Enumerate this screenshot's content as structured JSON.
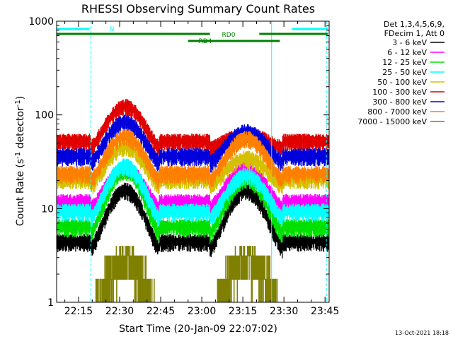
{
  "chart_data": {
    "type": "line",
    "title": "RHESSI Observing Summary Count Rates",
    "xlabel": "Start Time (20-Jan-09 22:07:02)",
    "ylabel": "Count Rate (s",
    "ylabel_sup1": "-1",
    "ylabel_mid": " detector",
    "ylabel_sup2": "-1",
    "ylabel_end": ")",
    "x_unit": "minutes after 22:00 UT",
    "xlim": [
      7.0,
      106.5
    ],
    "ylim": [
      1,
      1000
    ],
    "yscale": "log",
    "x_ticks": [
      15,
      30,
      45,
      60,
      75,
      90,
      105
    ],
    "x_tick_labels": [
      "22:15",
      "22:30",
      "22:45",
      "23:00",
      "23:15",
      "23:30",
      "23:45"
    ],
    "y_ticks": [
      1,
      10,
      100,
      1000
    ],
    "y_tick_labels": [
      "1",
      "10",
      "100",
      "1000"
    ],
    "legend_header": [
      "Det 1,3,4,5,6,9,",
      "FDecim 1, Att 0"
    ],
    "legend_position": "right, outside plot",
    "series": [
      {
        "name": "3 - 6 keV",
        "color": "#000000",
        "day1_peak": 16,
        "day2_peak": 16,
        "night_level": 4.5
      },
      {
        "name": "6 - 12 keV",
        "color": "#ff00ff",
        "day1_peak": 27,
        "day2_peak": 27,
        "night_level": 12
      },
      {
        "name": "12 - 25 keV",
        "color": "#00e000",
        "day1_peak": 26,
        "day2_peak": 21,
        "night_level": 6.5
      },
      {
        "name": "25 - 50 keV",
        "color": "#00ffff",
        "day1_peak": 29,
        "day2_peak": 23,
        "night_level": 9.5
      },
      {
        "name": "50 - 100 keV",
        "color": "#d4c000",
        "day1_peak": 47,
        "day2_peak": 35,
        "night_level": 21
      },
      {
        "name": "100 - 300 keV",
        "color": "#e00000",
        "day1_peak": 125,
        "day2_peak": 62,
        "night_level": 53
      },
      {
        "name": "300 - 800 keV",
        "color": "#0000dd",
        "day1_peak": 85,
        "day2_peak": 67,
        "night_level": 37
      },
      {
        "name": "800 - 7000 keV",
        "color": "#ff8000",
        "day1_peak": 60,
        "day2_peak": 57,
        "night_level": 24
      },
      {
        "name": "7000 - 15000 keV",
        "color": "#808000",
        "day1_peak": 3.5,
        "day2_peak": 3.5,
        "night_level": 1
      }
    ],
    "day_intervals": [
      [
        19.5,
        44.5
      ],
      [
        63.0,
        89.5
      ]
    ],
    "night_intervals": [
      [
        7.0,
        19.5
      ],
      [
        44.5,
        63.0
      ],
      [
        89.5,
        106.5
      ]
    ],
    "flag_bars": [
      {
        "label": "N",
        "color": "#00ffff",
        "intervals": [
          [
            7.0,
            19.0
          ],
          [
            93.0,
            106.0
          ]
        ]
      },
      {
        "label": "RD0",
        "color": "#008000",
        "intervals": [
          [
            7.0,
            63.0
          ],
          [
            81.0,
            106.0
          ]
        ]
      },
      {
        "label": "RD4",
        "color": "#008000",
        "intervals": [
          [
            55.0,
            88.5
          ]
        ]
      }
    ],
    "saa_lines": [
      {
        "x": 7.0,
        "style": "solid"
      },
      {
        "x": 19.5,
        "style": "dashed"
      },
      {
        "x": 85.5,
        "style": "solid"
      },
      {
        "x": 105.5,
        "style": "dashed"
      }
    ]
  },
  "footer": {
    "timestamp": "13-Oct-2021 18:18"
  }
}
